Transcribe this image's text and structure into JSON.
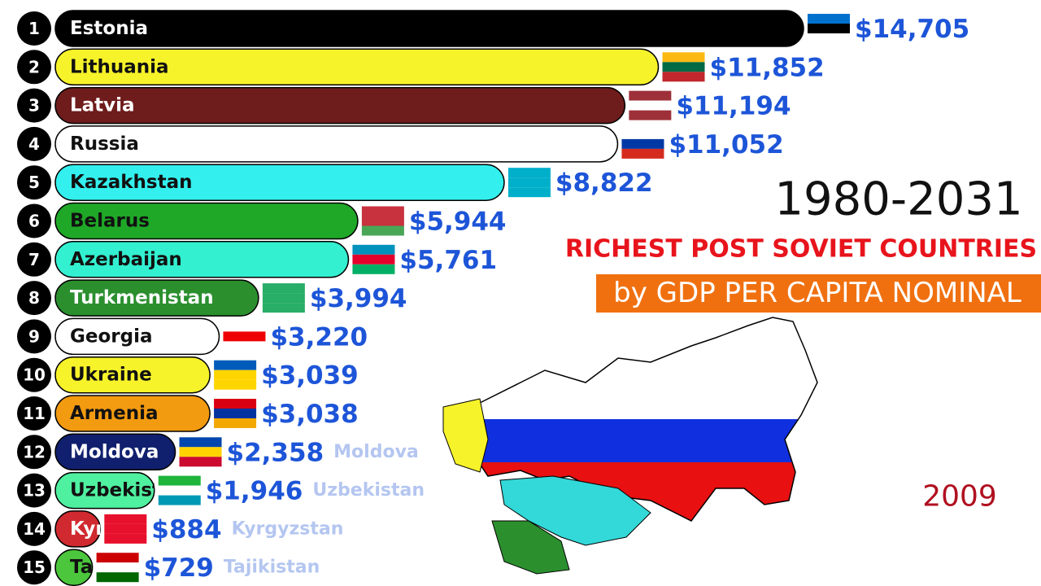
{
  "chart_data": {
    "type": "bar",
    "orientation": "horizontal",
    "title": "RICHEST POST SOVIET COUNTRIES",
    "subtitle": "by GDP PER CAPITA NOMINAL",
    "period": "1980-2031",
    "year": "2009",
    "ranks": [
      1,
      2,
      3,
      4,
      5,
      6,
      7,
      8,
      9,
      10,
      11,
      12,
      13,
      14,
      15
    ],
    "categories": [
      "Estonia",
      "Lithuania",
      "Latvia",
      "Russia",
      "Kazakhstan",
      "Belarus",
      "Azerbaijan",
      "Turkmenistan",
      "Georgia",
      "Ukraine",
      "Armenia",
      "Moldova",
      "Uzbekistan",
      "Kyrgyzstan",
      "Tajikistan"
    ],
    "values": [
      14705,
      11852,
      11194,
      11052,
      8822,
      5944,
      5761,
      3994,
      3220,
      3039,
      3038,
      2358,
      1946,
      884,
      729
    ],
    "value_labels": [
      "$14,705",
      "$11,852",
      "$11,194",
      "$11,052",
      "$8,822",
      "$5,944",
      "$5,761",
      "$3,994",
      "$3,220",
      "$3,039",
      "$3,038",
      "$2,358",
      "$1,946",
      "$884",
      "$729"
    ],
    "colors": [
      "#000000",
      "#f7f32a",
      "#6e1c1c",
      "#ffffff",
      "#33f0ee",
      "#1fa827",
      "#33f0d0",
      "#2b8f2e",
      "#ffffff",
      "#f7f32a",
      "#f29a10",
      "#10206e",
      "#4ff0a0",
      "#d02a30",
      "#4cc63c"
    ],
    "value_color": "#1d55d8"
  }
}
